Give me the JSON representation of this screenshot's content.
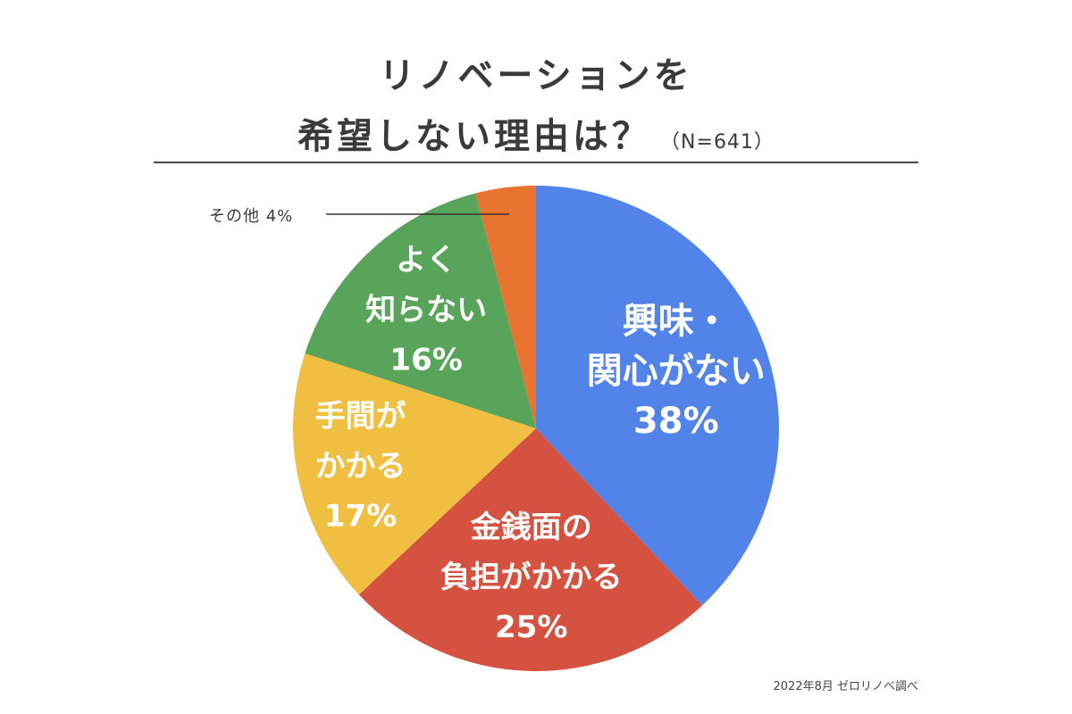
{
  "title_line1": "リノベーションを",
  "title_line2": "希望しない理由は？",
  "sample_size": "（N=641）",
  "source": "2022年8月 ゼロリノベ調べ",
  "chart_data": {
    "type": "pie",
    "title": "リノベーションを希望しない理由は？",
    "n": 641,
    "slices": [
      {
        "label_lines": [
          "興味・",
          "関心がない"
        ],
        "pct_label": "38%",
        "value": 38,
        "color": "#5283e8"
      },
      {
        "label_lines": [
          "金銭面の",
          "負担がかかる"
        ],
        "pct_label": "25%",
        "value": 25,
        "color": "#d65240"
      },
      {
        "label_lines": [
          "手間が",
          "かかる"
        ],
        "pct_label": "17%",
        "value": 17,
        "color": "#f0bf41"
      },
      {
        "label_lines": [
          "よく",
          "知らない"
        ],
        "pct_label": "16%",
        "value": 16,
        "color": "#58a45b"
      },
      {
        "label_lines": [
          "その他"
        ],
        "pct_label": "4%",
        "value": 4,
        "color": "#e87430"
      }
    ],
    "other_label": "その他 4%"
  }
}
